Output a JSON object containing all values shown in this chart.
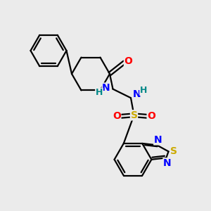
{
  "background_color": "#ebebeb",
  "bond_color": "#000000",
  "atom_colors": {
    "O": "#ff0000",
    "N": "#0000ff",
    "S_btd": "#ccaa00",
    "S_so2": "#ccaa00",
    "H": "#008888"
  },
  "line_width": 1.6,
  "figsize": [
    3.0,
    3.0
  ],
  "dpi": 100
}
